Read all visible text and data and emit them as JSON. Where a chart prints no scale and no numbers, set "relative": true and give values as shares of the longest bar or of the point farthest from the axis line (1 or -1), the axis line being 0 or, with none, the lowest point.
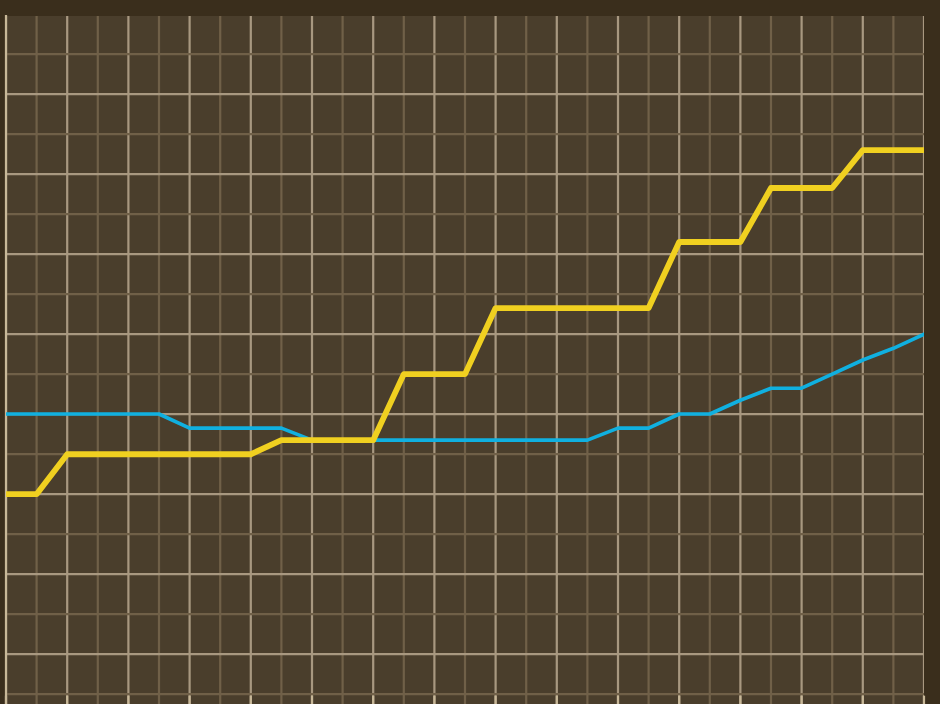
{
  "chart_data": {
    "type": "line",
    "relative": true,
    "grid": true,
    "legend": false,
    "tick_labels": false,
    "marker": "none",
    "line_style": "solid",
    "categories": [
      null,
      null,
      null,
      null,
      null,
      null,
      null,
      null,
      null,
      null,
      null,
      null,
      null,
      null,
      null,
      null,
      null,
      null,
      null,
      null,
      null,
      null,
      null,
      null,
      null,
      null,
      null,
      null,
      null,
      null,
      null
    ],
    "series": [
      {
        "color": "#f0d020",
        "values": [
          0,
          0,
          0.116,
          0.116,
          0.116,
          0.116,
          0.116,
          0.116,
          0.116,
          0.157,
          0.157,
          0.157,
          0.157,
          0.349,
          0.349,
          0.349,
          0.541,
          0.541,
          0.541,
          0.541,
          0.541,
          0.541,
          0.733,
          0.733,
          0.733,
          0.89,
          0.89,
          0.89,
          1,
          1,
          1
        ]
      },
      {
        "color": "#10b0e0",
        "values": [
          0.233,
          0.233,
          0.233,
          0.233,
          0.233,
          0.233,
          0.192,
          0.192,
          0.192,
          0.192,
          0.157,
          0.157,
          0.157,
          0.157,
          0.157,
          0.157,
          0.157,
          0.157,
          0.157,
          0.157,
          0.192,
          0.192,
          0.233,
          0.233,
          0.273,
          0.308,
          0.308,
          0.349,
          0.39,
          0.424,
          0.465
        ]
      }
    ]
  }
}
